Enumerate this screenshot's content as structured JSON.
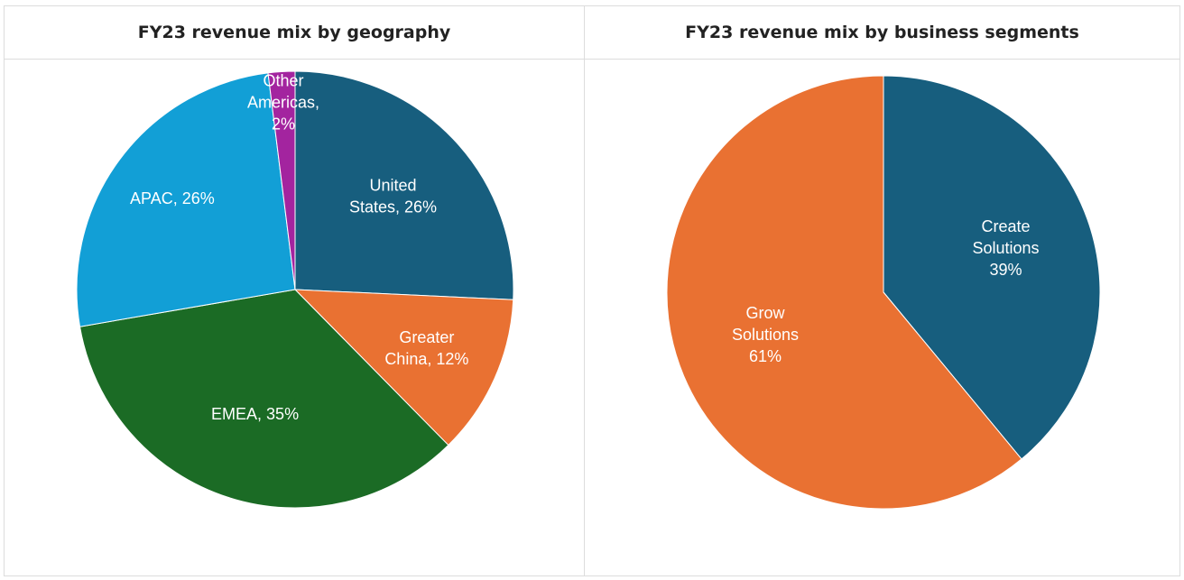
{
  "chart_data": [
    {
      "type": "pie",
      "title": "FY23 revenue mix by geography",
      "slices": [
        {
          "name": "United States",
          "value": 26,
          "color": "#175e7e",
          "label_lines": [
            "United",
            "States, 26%"
          ]
        },
        {
          "name": "Greater China",
          "value": 12,
          "color": "#e97132",
          "label_lines": [
            "Greater",
            "China, 12%"
          ]
        },
        {
          "name": "EMEA",
          "value": 35,
          "color": "#1b6b25",
          "label_lines": [
            "EMEA, 35%"
          ]
        },
        {
          "name": "APAC",
          "value": 26,
          "color": "#129fd6",
          "label_lines": [
            "APAC, 26%"
          ]
        },
        {
          "name": "Other Americas",
          "value": 2,
          "color": "#a3249f",
          "label_lines": [
            "Other",
            "Americas,",
            "2%"
          ]
        }
      ]
    },
    {
      "type": "pie",
      "title": "FY23 revenue mix by business segments",
      "slices": [
        {
          "name": "Create Solutions",
          "value": 39,
          "color": "#175e7e",
          "label_lines": [
            "Create",
            "Solutions",
            "39%"
          ]
        },
        {
          "name": "Grow Solutions",
          "value": 61,
          "color": "#e97132",
          "label_lines": [
            "Grow",
            "Solutions",
            "61%"
          ]
        }
      ]
    }
  ]
}
